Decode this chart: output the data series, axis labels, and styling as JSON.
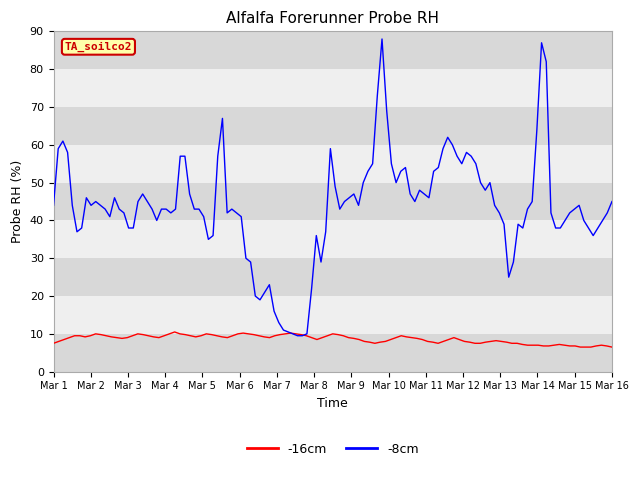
{
  "title": "Alfalfa Forerunner Probe RH",
  "ylabel": "Probe RH (%)",
  "xlabel": "Time",
  "ylim": [
    0,
    90
  ],
  "xlim": [
    0,
    15
  ],
  "xtick_labels": [
    "Mar 1",
    "Mar 2",
    "Mar 3",
    "Mar 4",
    "Mar 5",
    "Mar 6",
    "Mar 7",
    "Mar 8",
    "Mar 9",
    "Mar 10",
    "Mar 11",
    "Mar 12",
    "Mar 13",
    "Mar 14",
    "Mar 15",
    "Mar 16"
  ],
  "ytick_values": [
    0,
    10,
    20,
    30,
    40,
    50,
    60,
    70,
    80,
    90
  ],
  "bg_color": "#d8d8d8",
  "legend_label": "TA_soilco2",
  "legend_bg": "#ffffaa",
  "legend_border": "#cc0000",
  "line_red_color": "#ff0000",
  "line_blue_color": "#0000ff",
  "line_red_label": "-16cm",
  "line_blue_label": "-8cm",
  "red_data": [
    7.5,
    8.0,
    8.5,
    9.0,
    9.5,
    9.5,
    9.2,
    9.5,
    10.0,
    9.8,
    9.5,
    9.2,
    9.0,
    8.8,
    9.0,
    9.5,
    10.0,
    9.8,
    9.5,
    9.2,
    9.0,
    9.5,
    10.0,
    10.5,
    10.0,
    9.8,
    9.5,
    9.2,
    9.5,
    10.0,
    9.8,
    9.5,
    9.2,
    9.0,
    9.5,
    10.0,
    10.2,
    10.0,
    9.8,
    9.5,
    9.2,
    9.0,
    9.5,
    9.8,
    10.0,
    10.2,
    10.0,
    9.8,
    9.5,
    9.0,
    8.5,
    9.0,
    9.5,
    10.0,
    9.8,
    9.5,
    9.0,
    8.8,
    8.5,
    8.0,
    7.8,
    7.5,
    7.8,
    8.0,
    8.5,
    9.0,
    9.5,
    9.2,
    9.0,
    8.8,
    8.5,
    8.0,
    7.8,
    7.5,
    8.0,
    8.5,
    9.0,
    8.5,
    8.0,
    7.8,
    7.5,
    7.5,
    7.8,
    8.0,
    8.2,
    8.0,
    7.8,
    7.5,
    7.5,
    7.2,
    7.0,
    7.0,
    7.0,
    6.8,
    6.8,
    7.0,
    7.2,
    7.0,
    6.8,
    6.8,
    6.5,
    6.5,
    6.5,
    6.8,
    7.0,
    6.8,
    6.5
  ],
  "blue_data": [
    44.0,
    59.0,
    61.0,
    58.0,
    44.0,
    37.0,
    38.0,
    46.0,
    44.0,
    45.0,
    44.0,
    43.0,
    41.0,
    46.0,
    43.0,
    42.0,
    38.0,
    38.0,
    45.0,
    47.0,
    45.0,
    43.0,
    40.0,
    43.0,
    43.0,
    42.0,
    43.0,
    57.0,
    57.0,
    47.0,
    43.0,
    43.0,
    41.0,
    35.0,
    36.0,
    57.0,
    67.0,
    42.0,
    43.0,
    42.0,
    41.0,
    30.0,
    29.0,
    20.0,
    19.0,
    21.0,
    23.0,
    16.0,
    13.0,
    11.0,
    10.5,
    10.0,
    9.5,
    9.5,
    10.0,
    22.0,
    36.0,
    29.0,
    37.0,
    59.0,
    49.0,
    43.0,
    45.0,
    46.0,
    47.0,
    44.0,
    50.0,
    53.0,
    55.0,
    73.0,
    88.0,
    69.0,
    55.0,
    50.0,
    53.0,
    54.0,
    47.0,
    45.0,
    48.0,
    47.0,
    46.0,
    53.0,
    54.0,
    59.0,
    62.0,
    60.0,
    57.0,
    55.0,
    58.0,
    57.0,
    55.0,
    50.0,
    48.0,
    50.0,
    44.0,
    42.0,
    39.0,
    25.0,
    29.0,
    39.0,
    38.0,
    43.0,
    45.0,
    64.0,
    87.0,
    82.0,
    42.0,
    38.0,
    38.0,
    40.0,
    42.0,
    43.0,
    44.0,
    40.0,
    38.0,
    36.0,
    38.0,
    40.0,
    42.0,
    45.0
  ]
}
